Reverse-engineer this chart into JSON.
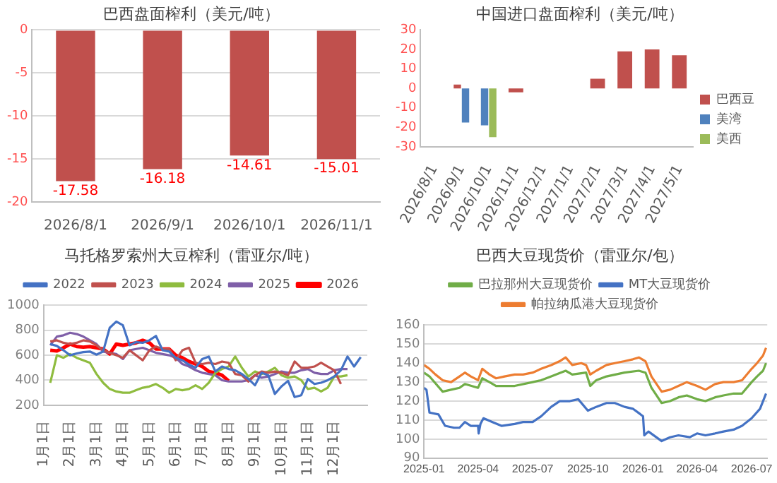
{
  "chart_data": [
    {
      "type": "bar",
      "title": "巴西盘面榨利（美元/吨）",
      "categories": [
        "2026/8/1",
        "2026/9/1",
        "2026/10/1",
        "2026/11/1"
      ],
      "values": [
        -17.58,
        -16.18,
        -14.61,
        -15.01
      ],
      "color": "#c0504d",
      "ylim": [
        -20,
        0
      ],
      "yticks": [
        -20,
        -15,
        -10,
        -5,
        0
      ],
      "grid": "y",
      "data_labels": true
    },
    {
      "type": "bar",
      "title": "中国进口盘面榨利（美元/吨）",
      "categories": [
        "2026/8/1",
        "2026/9/1",
        "2026/10/1",
        "2026/11/1",
        "2026/12/1",
        "2027/1/1",
        "2027/2/1",
        "2027/3/1",
        "2027/4/1",
        "2027/5/1"
      ],
      "series": [
        {
          "name": "巴西豆",
          "color": "#c0504d",
          "values": [
            null,
            2,
            null,
            -2,
            null,
            null,
            5,
            19,
            20,
            17
          ]
        },
        {
          "name": "美湾",
          "color": "#4f81bd",
          "values": [
            null,
            -17.5,
            -19,
            null,
            null,
            null,
            null,
            null,
            null,
            null
          ]
        },
        {
          "name": "美西",
          "color": "#9bbb59",
          "values": [
            null,
            null,
            -25,
            null,
            null,
            null,
            null,
            null,
            null,
            null
          ]
        }
      ],
      "ylim": [
        -30,
        30
      ],
      "yticks": [
        -30,
        -20,
        -10,
        0,
        10,
        20,
        30
      ],
      "legend": "right"
    },
    {
      "type": "line",
      "title": "马托格罗索州大豆榨利（雷亚尔/吨）",
      "categories": [
        "1月1日",
        null,
        null,
        null,
        "2月1日",
        null,
        null,
        null,
        "3月1日",
        null,
        null,
        null,
        "4月1日",
        null,
        null,
        null,
        "5月1日",
        null,
        null,
        null,
        "6月1日",
        null,
        null,
        null,
        "7月1日",
        null,
        null,
        null,
        "8月1日",
        null,
        null,
        null,
        "9月1日",
        null,
        null,
        null,
        "10月1日",
        null,
        null,
        null,
        "11月1日",
        null,
        null,
        null,
        "12月1日",
        null,
        null,
        null,
        null,
        null
      ],
      "series": [
        {
          "name": "2022",
          "color": "#4472c4",
          "values": [
            null,
            690,
            675,
            640,
            600,
            615,
            625,
            630,
            605,
            630,
            820,
            870,
            840,
            680,
            705,
            700,
            720,
            755,
            640,
            630,
            580,
            560,
            525,
            500,
            570,
            590,
            470,
            510,
            490,
            480,
            450,
            410,
            360,
            460,
            440,
            290,
            350,
            395,
            265,
            280,
            410,
            370,
            380,
            400,
            430,
            480,
            590,
            510,
            585,
            null
          ]
        },
        {
          "name": "2023",
          "color": "#c0504d",
          "values": [
            null,
            710,
            720,
            700,
            690,
            700,
            720,
            710,
            680,
            640,
            620,
            600,
            580,
            640,
            600,
            560,
            640,
            670,
            650,
            650,
            560,
            640,
            660,
            540,
            530,
            540,
            530,
            550,
            540,
            450,
            440,
            390,
            440,
            470,
            460,
            470,
            460,
            440,
            550,
            500,
            500,
            510,
            540,
            510,
            480,
            370,
            null,
            null,
            null,
            null
          ]
        },
        {
          "name": "2024",
          "color": "#8fbc3f",
          "values": [
            null,
            380,
            600,
            580,
            610,
            580,
            560,
            540,
            450,
            380,
            330,
            310,
            300,
            300,
            320,
            340,
            350,
            370,
            340,
            300,
            330,
            320,
            330,
            360,
            330,
            380,
            460,
            490,
            510,
            590,
            500,
            430,
            470,
            450,
            470,
            500,
            440,
            420,
            430,
            400,
            330,
            340,
            310,
            340,
            430,
            430,
            440,
            null,
            null,
            null
          ]
        },
        {
          "name": "2025",
          "color": "#7f5fa8",
          "values": [
            null,
            680,
            750,
            760,
            780,
            770,
            750,
            720,
            690,
            630,
            620,
            610,
            570,
            640,
            650,
            660,
            640,
            620,
            610,
            600,
            580,
            530,
            510,
            480,
            460,
            450,
            440,
            400,
            390,
            390,
            390,
            400,
            440,
            420,
            430,
            450,
            470,
            460,
            460,
            480,
            490,
            460,
            450,
            450,
            480,
            490,
            490,
            null,
            null,
            null
          ]
        },
        {
          "name": "2026",
          "color": "#ff0000",
          "values": [
            null,
            640,
            635,
            660,
            690,
            670,
            665,
            670,
            660,
            650,
            610,
            690,
            680,
            690,
            700,
            720,
            700,
            650,
            650,
            650,
            600,
            580,
            550,
            530,
            510,
            470,
            460,
            440,
            395,
            null,
            null,
            null,
            null,
            null,
            null,
            null,
            null,
            null,
            null,
            null,
            null,
            null,
            null,
            null,
            null,
            null,
            null,
            null,
            null,
            null
          ]
        }
      ],
      "ylim": [
        200,
        1000
      ],
      "yticks": [
        200,
        400,
        600,
        800,
        1000
      ],
      "grid": "y",
      "legend": "top",
      "marker": "none"
    },
    {
      "type": "line",
      "title": "巴西大豆现货价（雷亚尔/包）",
      "series": [
        {
          "name": "巴拉那州大豆现货价",
          "color": "#70ad47",
          "x": [
            "2025-01-01",
            "2025-01-10",
            "2025-02-01",
            "2025-02-15",
            "2025-03-01",
            "2025-03-10",
            "2025-04-01",
            "2025-04-08",
            "2025-04-20",
            "2025-05-01",
            "2025-06-01",
            "2025-07-01",
            "2025-07-15",
            "2025-08-01",
            "2025-08-25",
            "2025-09-05",
            "2025-09-28",
            "2025-10-05",
            "2025-10-15",
            "2025-11-01",
            "2025-12-01",
            "2025-12-25",
            "2026-01-05",
            "2026-01-15",
            "2026-02-01",
            "2026-02-15",
            "2026-03-01",
            "2026-03-15",
            "2026-04-01",
            "2026-04-15",
            "2026-05-01",
            "2026-05-15",
            "2026-06-01",
            "2026-06-15",
            "2026-07-01",
            "2026-07-10",
            "2026-07-20",
            "2026-07-25"
          ],
          "values": [
            135,
            133,
            125,
            126,
            127,
            129,
            127,
            132,
            130,
            128,
            128,
            130,
            131,
            133,
            136,
            134,
            135,
            128,
            131,
            133,
            135,
            136,
            135,
            127,
            119,
            120,
            122,
            123,
            121,
            120,
            122,
            123,
            124,
            124,
            130,
            133,
            136,
            140
          ]
        },
        {
          "name": "MT大豆现货价",
          "color": "#4472c4",
          "x": [
            "2025-01-01",
            "2025-01-05",
            "2025-01-10",
            "2025-01-25",
            "2025-02-05",
            "2025-02-20",
            "2025-03-01",
            "2025-03-10",
            "2025-03-20",
            "2025-04-01",
            "2025-04-02",
            "2025-04-05",
            "2025-04-10",
            "2025-04-25",
            "2025-05-10",
            "2025-06-01",
            "2025-06-15",
            "2025-07-01",
            "2025-07-15",
            "2025-08-01",
            "2025-08-15",
            "2025-09-01",
            "2025-09-15",
            "2025-10-01",
            "2025-10-15",
            "2025-11-01",
            "2025-11-15",
            "2025-12-01",
            "2025-12-15",
            "2025-12-28",
            "2026-01-01",
            "2026-01-03",
            "2026-01-10",
            "2026-02-01",
            "2026-02-15",
            "2026-03-01",
            "2026-03-20",
            "2026-04-01",
            "2026-04-15",
            "2026-05-01",
            "2026-05-15",
            "2026-06-01",
            "2026-06-15",
            "2026-07-01",
            "2026-07-15",
            "2026-07-25"
          ],
          "values": [
            127,
            126,
            114,
            113,
            107,
            106,
            106,
            109,
            107,
            107,
            103,
            108,
            111,
            109,
            107,
            108,
            109,
            109,
            112,
            117,
            120,
            120,
            121,
            115,
            117,
            119,
            119,
            117,
            116,
            113,
            112,
            102,
            104,
            99,
            101,
            102,
            101,
            103,
            102,
            103,
            104,
            105,
            107,
            111,
            116,
            124
          ]
        },
        {
          "name": "帕拉纳瓜港大豆现货价",
          "color": "#ed7d31",
          "x": [
            "2025-01-01",
            "2025-01-10",
            "2025-01-20",
            "2025-02-01",
            "2025-02-15",
            "2025-03-01",
            "2025-03-10",
            "2025-03-20",
            "2025-04-01",
            "2025-04-08",
            "2025-04-20",
            "2025-05-01",
            "2025-05-15",
            "2025-06-01",
            "2025-06-15",
            "2025-07-01",
            "2025-07-15",
            "2025-08-01",
            "2025-08-15",
            "2025-08-25",
            "2025-09-05",
            "2025-09-20",
            "2025-09-28",
            "2025-10-05",
            "2025-10-15",
            "2025-11-01",
            "2025-11-15",
            "2025-12-01",
            "2025-12-15",
            "2025-12-25",
            "2026-01-05",
            "2026-01-15",
            "2026-02-01",
            "2026-02-15",
            "2026-03-01",
            "2026-03-15",
            "2026-04-01",
            "2026-04-15",
            "2026-05-01",
            "2026-05-15",
            "2026-06-01",
            "2026-06-15",
            "2026-07-01",
            "2026-07-10",
            "2026-07-20",
            "2026-07-25"
          ],
          "values": [
            139,
            137,
            134,
            131,
            130,
            133,
            135,
            133,
            131,
            137,
            134,
            132,
            133,
            134,
            134,
            135,
            137,
            139,
            141,
            143,
            139,
            140,
            139,
            134,
            136,
            139,
            140,
            141,
            142,
            143,
            141,
            133,
            125,
            126,
            128,
            130,
            128,
            126,
            129,
            130,
            130,
            131,
            137,
            140,
            144,
            148
          ]
        }
      ],
      "xlim": [
        "2025-01",
        "2026-07-27"
      ],
      "xticks": [
        "2025-01",
        "2025-04",
        "2025-07",
        "2025-10",
        "2026-01",
        "2026-04",
        "2026-07"
      ],
      "ylim": [
        90,
        160
      ],
      "yticks": [
        90,
        100,
        110,
        120,
        130,
        140,
        150,
        160
      ],
      "grid": "y",
      "legend": "top",
      "marker": "none"
    }
  ]
}
